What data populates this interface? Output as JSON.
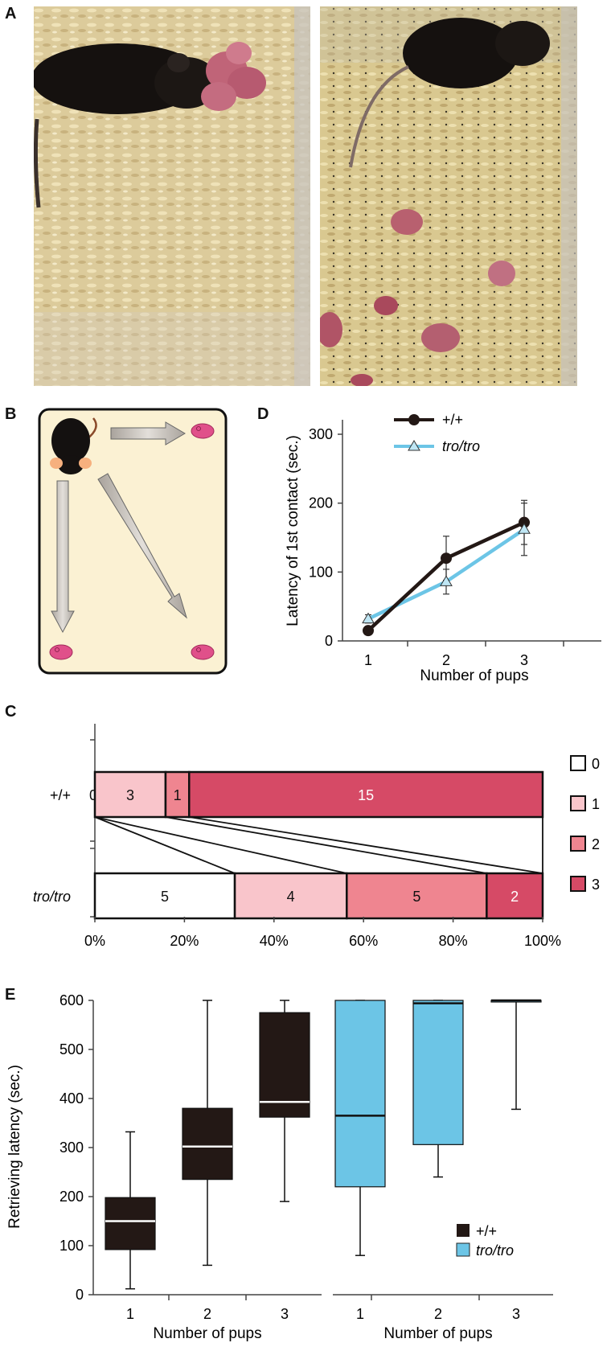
{
  "panels": {
    "A": "A",
    "B": "B",
    "C": "C",
    "D": "D",
    "E": "E"
  },
  "colors": {
    "wt": "#231815",
    "tro": "#6cc5e6",
    "cat0": "#ffffff",
    "cat1": "#f9c5cb",
    "cat2": "#ef8590",
    "cat3": "#d64a66",
    "pup": "#e0508a",
    "arena": "#fbf1d3"
  },
  "icons": {
    "mouse": "mouse-icon",
    "pup": "pup-icon",
    "arrow": "arrow-icon"
  },
  "chart_data": [
    {
      "panel": "D",
      "type": "line",
      "xlabel": "Number of pups",
      "ylabel": "Latency of 1st contact (sec.)",
      "x": [
        1,
        2,
        3
      ],
      "ylim": [
        0,
        300
      ],
      "yticks": [
        0,
        100,
        200,
        300
      ],
      "legend_position": "top-left",
      "series": [
        {
          "name": "+/+",
          "marker": "circle",
          "values": [
            15,
            120,
            172
          ],
          "error": [
            5,
            32,
            32
          ]
        },
        {
          "name": "tro/tro",
          "marker": "triangle",
          "values": [
            32,
            86,
            162
          ],
          "error": [
            6,
            18,
            38
          ]
        }
      ]
    },
    {
      "panel": "C",
      "type": "bar",
      "orientation": "horizontal-stacked-percent",
      "categories": [
        "+/+",
        "tro/tro"
      ],
      "xticks": [
        "0%",
        "20%",
        "40%",
        "60%",
        "80%",
        "100%"
      ],
      "legend": [
        "0",
        "1",
        "2",
        "3"
      ],
      "legend_position": "right",
      "series": [
        {
          "group": "+/+",
          "counts": [
            0,
            3,
            1,
            15
          ],
          "labels": [
            "0",
            "3",
            "1",
            "15"
          ]
        },
        {
          "group": "tro/tro",
          "counts": [
            5,
            4,
            5,
            2
          ],
          "labels": [
            "5",
            "4",
            "5",
            "2"
          ]
        }
      ]
    },
    {
      "panel": "E",
      "type": "box",
      "ylabel": "Retrieving latency (sec.)",
      "xlabel": "Number of pups",
      "ylim": [
        0,
        600
      ],
      "yticks": [
        0,
        100,
        200,
        300,
        400,
        500,
        600
      ],
      "legend": [
        "+/+",
        "tro/tro"
      ],
      "legend_position": "bottom-right",
      "groups": [
        {
          "name": "+/+",
          "categories": [
            "1",
            "2",
            "3"
          ],
          "boxes": [
            {
              "min": 12,
              "q1": 92,
              "median": 150,
              "q3": 198,
              "max": 332
            },
            {
              "min": 60,
              "q1": 235,
              "median": 302,
              "q3": 380,
              "max": 600
            },
            {
              "min": 190,
              "q1": 362,
              "median": 393,
              "q3": 575,
              "max": 600
            }
          ]
        },
        {
          "name": "tro/tro",
          "categories": [
            "1",
            "2",
            "3"
          ],
          "boxes": [
            {
              "min": 80,
              "q1": 220,
              "median": 365,
              "q3": 600,
              "max": 600
            },
            {
              "min": 240,
              "q1": 306,
              "median": 594,
              "q3": 600,
              "max": 600
            },
            {
              "min": 378,
              "q1": 600,
              "median": 600,
              "q3": 600,
              "max": 600
            }
          ]
        }
      ]
    }
  ]
}
